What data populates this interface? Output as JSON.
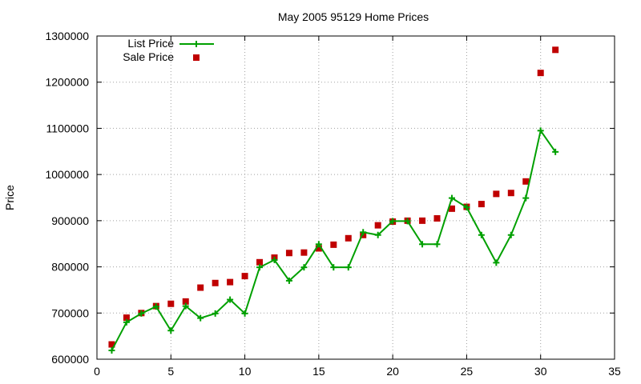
{
  "chart_data": {
    "type": "line",
    "title": "May 2005 95129 Home Prices",
    "xlabel": "",
    "ylabel": "Price",
    "xlim": [
      0,
      35
    ],
    "ylim": [
      600000,
      1300000
    ],
    "xticks": [
      0,
      5,
      10,
      15,
      20,
      25,
      30,
      35
    ],
    "yticks": [
      600000,
      700000,
      800000,
      900000,
      1000000,
      1100000,
      1200000,
      1300000
    ],
    "x_tick_labels": [
      "0",
      "5",
      "10",
      "15",
      "20",
      "25",
      "30",
      "35"
    ],
    "y_tick_labels": [
      "600000",
      "700000",
      "800000",
      "900000",
      "1000000",
      "1100000",
      "1200000",
      "1300000"
    ],
    "grid": true,
    "legend_position": "top-left",
    "series": [
      {
        "name": "List Price",
        "style": "linespoints",
        "color": "#00a000",
        "x": [
          1,
          2,
          3,
          4,
          5,
          6,
          7,
          8,
          9,
          10,
          11,
          12,
          13,
          14,
          15,
          16,
          17,
          18,
          19,
          20,
          21,
          22,
          23,
          24,
          25,
          26,
          27,
          28,
          29,
          30,
          31
        ],
        "values": [
          619000,
          680000,
          699000,
          714000,
          662000,
          715000,
          689000,
          699000,
          729000,
          699000,
          799000,
          815000,
          770000,
          799000,
          849000,
          799000,
          799000,
          875000,
          869000,
          899000,
          899000,
          849000,
          849000,
          949000,
          929000,
          869000,
          809000,
          869000,
          949000,
          1095000,
          1049000
        ]
      },
      {
        "name": "Sale Price",
        "style": "points",
        "color": "#c00000",
        "x": [
          1,
          2,
          3,
          4,
          5,
          6,
          7,
          8,
          9,
          10,
          11,
          12,
          13,
          14,
          15,
          16,
          17,
          18,
          19,
          20,
          21,
          22,
          23,
          24,
          25,
          26,
          27,
          28,
          29,
          30,
          31
        ],
        "values": [
          632000,
          690000,
          700000,
          715000,
          720000,
          725000,
          755000,
          765000,
          767000,
          780000,
          810000,
          820000,
          830000,
          831000,
          840000,
          848000,
          862000,
          869000,
          890000,
          898000,
          900000,
          900000,
          905000,
          926000,
          930000,
          936000,
          958000,
          960000,
          985000,
          1220000,
          1270000
        ]
      }
    ]
  }
}
